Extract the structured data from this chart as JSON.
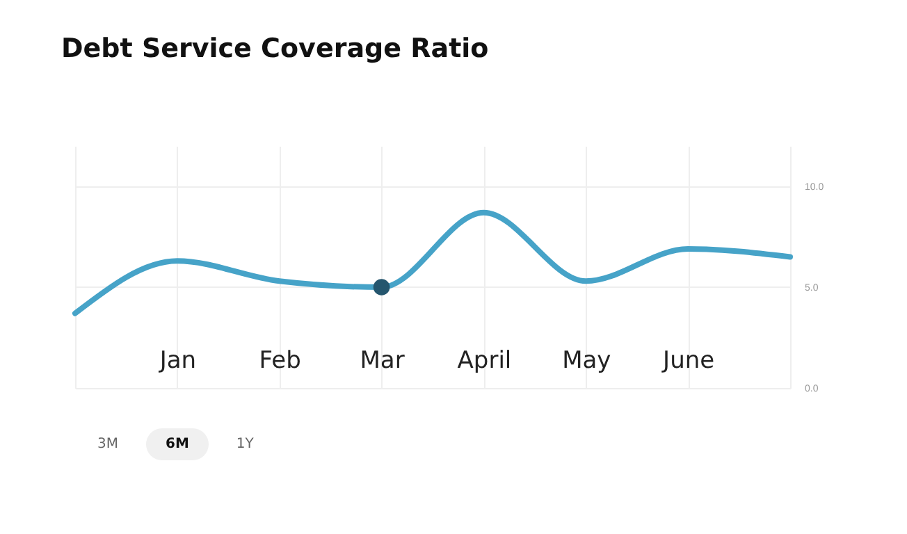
{
  "chart_data": {
    "type": "line",
    "title": "Debt Service Coverage Ratio",
    "categories": [
      null,
      "Jan",
      "Feb",
      "Mar",
      "April",
      "May",
      "June",
      null
    ],
    "ylim": [
      0,
      12
    ],
    "yticks": [
      {
        "value": 0,
        "label": "0.0"
      },
      {
        "value": 5,
        "label": "5.0"
      },
      {
        "value": 10,
        "label": "10.0"
      }
    ],
    "grid": true,
    "series": [
      {
        "type": "line",
        "color": "#46a3c8",
        "values": [
          3.7,
          6.3,
          5.3,
          5.0,
          8.7,
          5.3,
          6.9,
          6.5
        ]
      },
      {
        "type": "scatter",
        "color": "#25566e",
        "marker": "circle",
        "x": [
          "Mar"
        ],
        "values": [
          5.0
        ]
      }
    ],
    "annotations": [
      "3M",
      "6M",
      "1Y"
    ]
  }
}
